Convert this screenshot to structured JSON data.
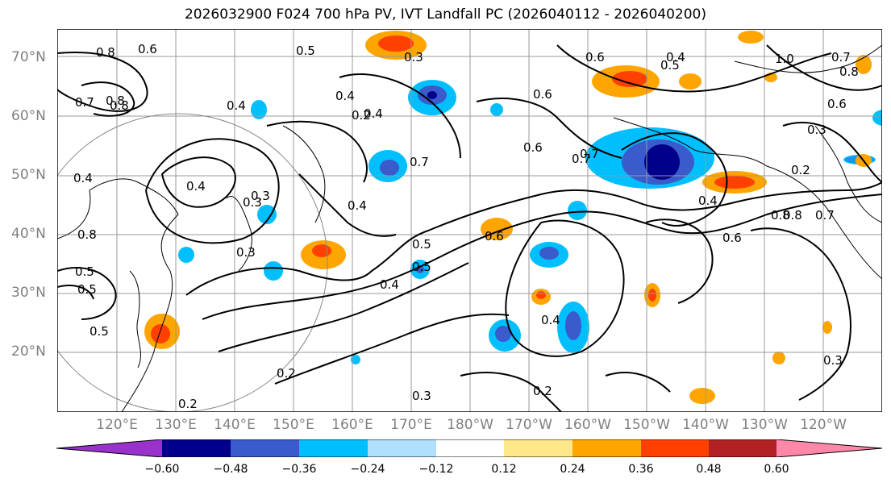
{
  "title": "2026032900 F024 700 hPa PV, IVT Landfall PC (2026040112 - 2026040200)",
  "lat_labels": [
    "70°N",
    "60°N",
    "50°N",
    "40°N",
    "30°N",
    "20°N"
  ],
  "lon_labels": [
    "120°E",
    "130°E",
    "140°E",
    "150°E",
    "160°E",
    "170°E",
    "180°W",
    "170°W",
    "160°W",
    "150°W",
    "140°W",
    "130°W",
    "120°W"
  ],
  "contour_labels": [
    "0.8",
    "0.6",
    "0.5",
    "0.3",
    "0.7",
    "0.8",
    "0.4",
    "0.4",
    "0.2",
    "0.4",
    "0.6",
    "0.5",
    "0.4",
    "0.6",
    "0.7",
    "0.6",
    "0.4",
    "0.5",
    "0.3",
    "0.4",
    "0.5",
    "0.7",
    "0.2",
    "0.4",
    "0.7",
    "0.6",
    "0.8",
    "0.5",
    "0.4",
    "0.3",
    "0.5",
    "0.2",
    "0.3",
    "0.2",
    "0.4",
    "0.6",
    "0.7",
    "0.8",
    "0.8",
    "0.6",
    "0.3",
    "0.2",
    "0.7",
    "0.8",
    "0.4",
    "0.3",
    "1.0",
    "0.8",
    "0.5",
    "0.3"
  ],
  "colorbar": {
    "tick_labels": [
      "−0.60",
      "−0.48",
      "−0.36",
      "−0.24",
      "−0.12",
      "0.12",
      "0.24",
      "0.36",
      "0.48",
      "0.60"
    ],
    "colors": [
      "#9932CC",
      "#00008B",
      "#3A5BCB",
      "#00BFFF",
      "#B0E0FF",
      "#FFFFFF",
      "#FFE88A",
      "#FFA500",
      "#FF4000",
      "#B22222",
      "#FF88AA"
    ]
  }
}
